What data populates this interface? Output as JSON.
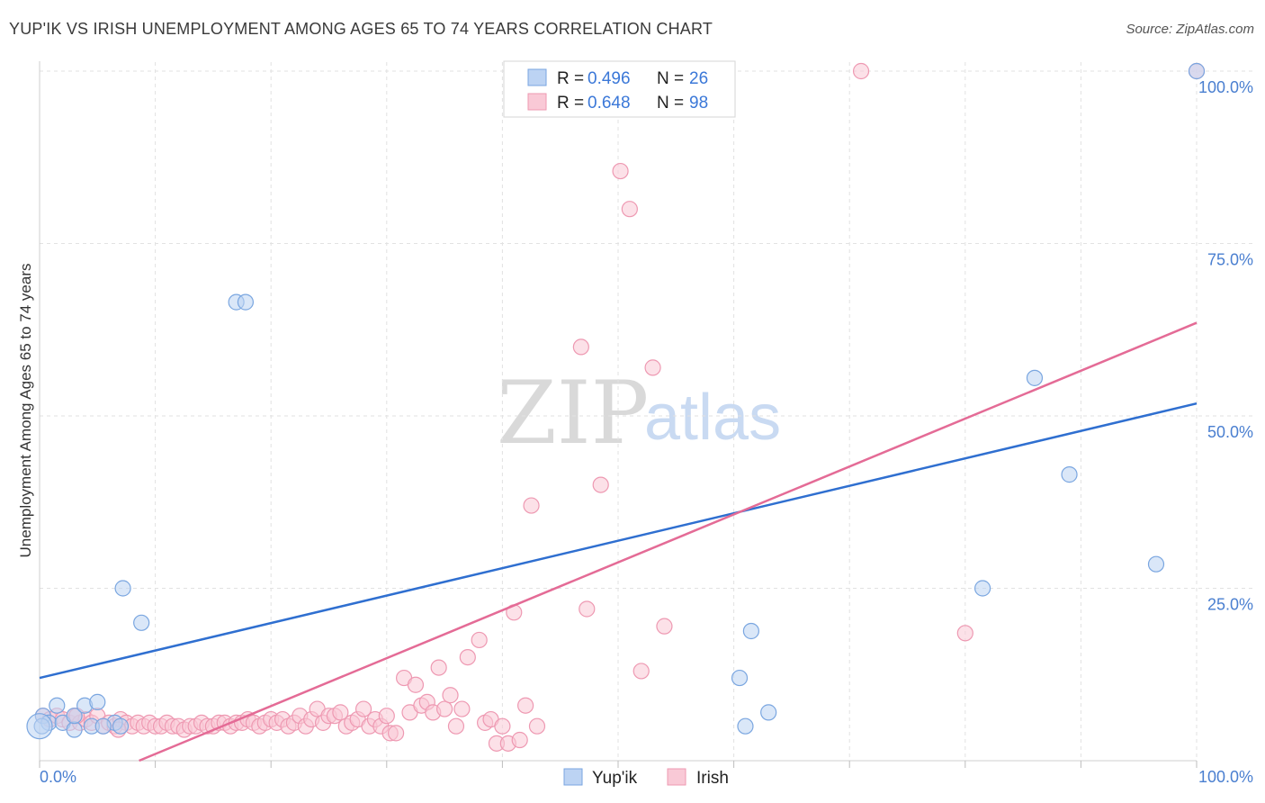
{
  "header": {
    "title": "YUP'IK VS IRISH UNEMPLOYMENT AMONG AGES 65 TO 74 YEARS CORRELATION CHART",
    "source": "Source: ZipAtlas.com"
  },
  "watermark": {
    "zip": "ZIP",
    "atlas": "atlas"
  },
  "legend": {
    "r_label": "R =",
    "n_label": "N =",
    "entries": [
      {
        "r": "0.496",
        "n": "26",
        "color": "#a9c7f0"
      },
      {
        "r": "0.648",
        "n": "98",
        "color": "#f6b6c8"
      }
    ]
  },
  "colors": {
    "yupik_fill": "#bcd3f3",
    "yupik_stroke": "#7aa6e0",
    "yupik_line": "#2f6fd0",
    "irish_fill": "#f9c9d6",
    "irish_stroke": "#ee99b2",
    "irish_line": "#e46b96",
    "grid": "#e2e2e2",
    "tick_label": "#4a7fd0"
  },
  "chart_data": {
    "type": "scatter",
    "title": "YUP'IK VS IRISH UNEMPLOYMENT AMONG AGES 65 TO 74 YEARS CORRELATION CHART",
    "xlabel": "",
    "ylabel": "Unemployment Among Ages 65 to 74 years",
    "xlim": [
      0,
      100
    ],
    "ylim": [
      0,
      100
    ],
    "x_tick_labels": [
      "0.0%",
      "100.0%"
    ],
    "y_ticks": [
      25,
      50,
      75,
      100
    ],
    "y_tick_labels": [
      "25.0%",
      "50.0%",
      "75.0%",
      "100.0%"
    ],
    "grid": true,
    "legend_position": "top-center",
    "series": [
      {
        "name": "Yup'ik",
        "trend": {
          "x": [
            0,
            100
          ],
          "y": [
            12.0,
            51.8
          ]
        },
        "points": [
          [
            0.3,
            6.5
          ],
          [
            0.8,
            5.5
          ],
          [
            1.5,
            8.0
          ],
          [
            2.0,
            5.5
          ],
          [
            3.0,
            4.5
          ],
          [
            3.0,
            6.5
          ],
          [
            3.9,
            8.0
          ],
          [
            4.5,
            5.0
          ],
          [
            5.0,
            8.5
          ],
          [
            6.5,
            5.5
          ],
          [
            7.0,
            5.0
          ],
          [
            7.2,
            25.0
          ],
          [
            8.8,
            20.0
          ],
          [
            17.0,
            66.5
          ],
          [
            17.8,
            66.5
          ],
          [
            60.5,
            12.0
          ],
          [
            61.0,
            5.0
          ],
          [
            61.5,
            18.8
          ],
          [
            63.0,
            7.0
          ],
          [
            81.5,
            25.0
          ],
          [
            86.0,
            55.5
          ],
          [
            89.0,
            41.5
          ],
          [
            96.5,
            28.5
          ],
          [
            100.0,
            100.0
          ],
          [
            0.2,
            5.0
          ],
          [
            5.5,
            5.0
          ]
        ]
      },
      {
        "name": "Irish",
        "trend": {
          "x": [
            8.6,
            100
          ],
          "y": [
            0,
            63.5
          ]
        },
        "points": [
          [
            0.3,
            6.5
          ],
          [
            0.9,
            6.0
          ],
          [
            1.5,
            6.5
          ],
          [
            2.0,
            6.0
          ],
          [
            2.6,
            5.5
          ],
          [
            3.0,
            6.5
          ],
          [
            3.5,
            5.5
          ],
          [
            4.0,
            6.0
          ],
          [
            4.5,
            5.5
          ],
          [
            5.0,
            6.5
          ],
          [
            5.5,
            5.0
          ],
          [
            6.0,
            5.5
          ],
          [
            6.5,
            5.0
          ],
          [
            7.0,
            6.0
          ],
          [
            7.5,
            5.5
          ],
          [
            8.0,
            5.0
          ],
          [
            8.5,
            5.5
          ],
          [
            9.0,
            5.0
          ],
          [
            9.5,
            5.5
          ],
          [
            10.0,
            5.0
          ],
          [
            10.5,
            5.0
          ],
          [
            11.0,
            5.5
          ],
          [
            11.5,
            5.0
          ],
          [
            12.0,
            5.0
          ],
          [
            12.5,
            4.5
          ],
          [
            13.0,
            5.0
          ],
          [
            13.5,
            5.0
          ],
          [
            14.0,
            5.5
          ],
          [
            14.5,
            5.0
          ],
          [
            15.0,
            5.0
          ],
          [
            15.5,
            5.5
          ],
          [
            16.0,
            5.5
          ],
          [
            16.5,
            5.0
          ],
          [
            17.0,
            5.5
          ],
          [
            17.5,
            5.5
          ],
          [
            18.0,
            6.0
          ],
          [
            18.5,
            5.5
          ],
          [
            19.0,
            5.0
          ],
          [
            19.5,
            5.5
          ],
          [
            20.0,
            6.0
          ],
          [
            20.5,
            5.5
          ],
          [
            21.0,
            6.0
          ],
          [
            21.5,
            5.0
          ],
          [
            22.0,
            5.5
          ],
          [
            22.5,
            6.5
          ],
          [
            23.0,
            5.0
          ],
          [
            23.5,
            6.0
          ],
          [
            24.0,
            7.5
          ],
          [
            24.5,
            5.5
          ],
          [
            25.0,
            6.5
          ],
          [
            25.5,
            6.5
          ],
          [
            26.0,
            7.0
          ],
          [
            26.5,
            5.0
          ],
          [
            27.0,
            5.5
          ],
          [
            27.5,
            6.0
          ],
          [
            28.0,
            7.5
          ],
          [
            28.5,
            5.0
          ],
          [
            29.0,
            6.0
          ],
          [
            29.5,
            5.0
          ],
          [
            30.0,
            6.5
          ],
          [
            30.3,
            4.0
          ],
          [
            30.8,
            4.0
          ],
          [
            31.5,
            12.0
          ],
          [
            32.0,
            7.0
          ],
          [
            32.5,
            11.0
          ],
          [
            33.0,
            8.0
          ],
          [
            33.5,
            8.5
          ],
          [
            34.0,
            7.0
          ],
          [
            34.5,
            13.5
          ],
          [
            35.0,
            7.5
          ],
          [
            35.5,
            9.5
          ],
          [
            36.0,
            5.0
          ],
          [
            36.5,
            7.5
          ],
          [
            37.0,
            15.0
          ],
          [
            38.0,
            17.5
          ],
          [
            38.5,
            5.5
          ],
          [
            39.0,
            6.0
          ],
          [
            39.5,
            2.5
          ],
          [
            40.0,
            5.0
          ],
          [
            40.5,
            2.5
          ],
          [
            41.0,
            21.5
          ],
          [
            41.5,
            3.0
          ],
          [
            42.0,
            8.0
          ],
          [
            42.5,
            37.0
          ],
          [
            43.0,
            5.0
          ],
          [
            46.8,
            60.0
          ],
          [
            47.3,
            22.0
          ],
          [
            48.5,
            40.0
          ],
          [
            50.2,
            85.5
          ],
          [
            51.0,
            80.0
          ],
          [
            52.0,
            13.0
          ],
          [
            53.0,
            57.0
          ],
          [
            54.0,
            19.5
          ],
          [
            71.0,
            100.0
          ],
          [
            80.0,
            18.5
          ],
          [
            100.0,
            100.0
          ],
          [
            3.2,
            6.5
          ],
          [
            6.8,
            4.5
          ]
        ]
      }
    ]
  }
}
